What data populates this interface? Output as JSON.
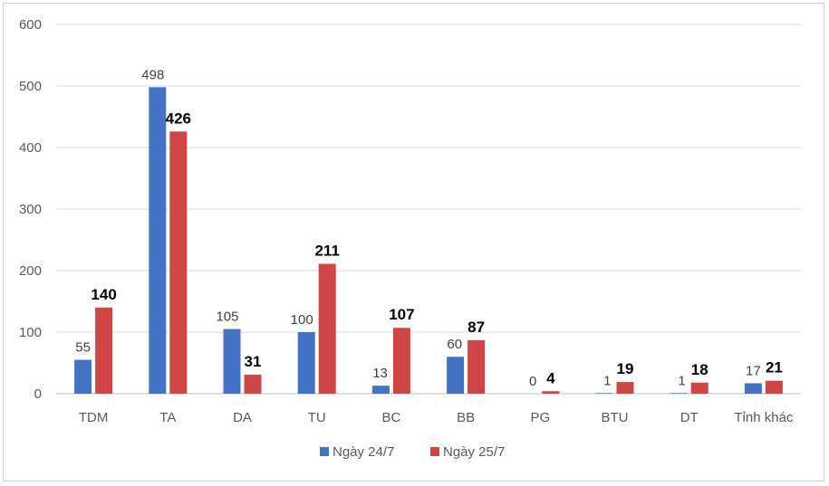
{
  "chart_data": {
    "type": "bar",
    "categories": [
      "TDM",
      "TA",
      "DA",
      "TU",
      "BC",
      "BB",
      "PG",
      "BTU",
      "DT",
      "Tỉnh khác"
    ],
    "series": [
      {
        "name": "Ngày 24/7",
        "values": [
          55,
          498,
          105,
          100,
          13,
          60,
          0,
          1,
          1,
          17
        ],
        "color": "#4472c4"
      },
      {
        "name": "Ngày 25/7",
        "values": [
          140,
          426,
          31,
          211,
          107,
          87,
          4,
          19,
          18,
          21
        ],
        "color": "#d04545"
      }
    ],
    "ylim": [
      0,
      600
    ],
    "yticks": [
      0,
      100,
      200,
      300,
      400,
      500,
      600
    ],
    "grid": true,
    "legend": "bottom"
  }
}
